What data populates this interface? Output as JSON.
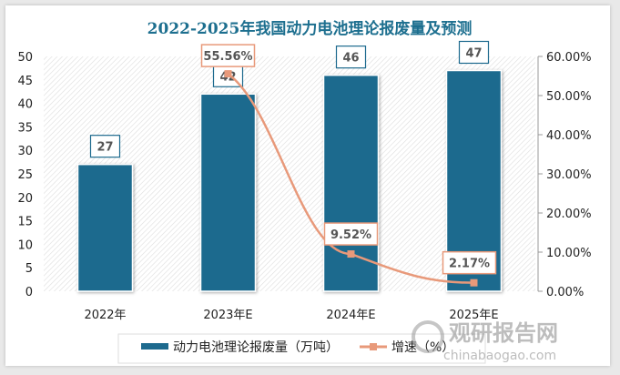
{
  "chart_data": {
    "type": "bar+line",
    "title": "2022-2025年我国动力电池理论报废量及预测",
    "categories": [
      "2022年",
      "2023年E",
      "2024年E",
      "2025年E"
    ],
    "series": [
      {
        "name": "动力电池理论报废量（万吨）",
        "type": "bar",
        "axis": "left",
        "values": [
          27,
          42,
          46,
          47
        ],
        "labels": [
          "27",
          "42",
          "46",
          "47"
        ],
        "color": "#1d6a8e"
      },
      {
        "name": "增速（%）",
        "type": "line",
        "axis": "right",
        "values": [
          null,
          55.56,
          9.52,
          2.17
        ],
        "labels": [
          "",
          "55.56%",
          "9.52%",
          "2.17%"
        ],
        "color": "#e8997a"
      }
    ],
    "left_axis": {
      "ylim": [
        0,
        50
      ],
      "ticks": [
        "0",
        "5",
        "10",
        "15",
        "20",
        "25",
        "30",
        "35",
        "40",
        "45",
        "50"
      ]
    },
    "right_axis": {
      "ylim": [
        0,
        60
      ],
      "ticks": [
        "0.00%",
        "10.00%",
        "20.00%",
        "30.00%",
        "40.00%",
        "50.00%",
        "60.00%"
      ]
    },
    "legend": "bottom",
    "watermark": "观研报告网 chinabaogao.com"
  }
}
